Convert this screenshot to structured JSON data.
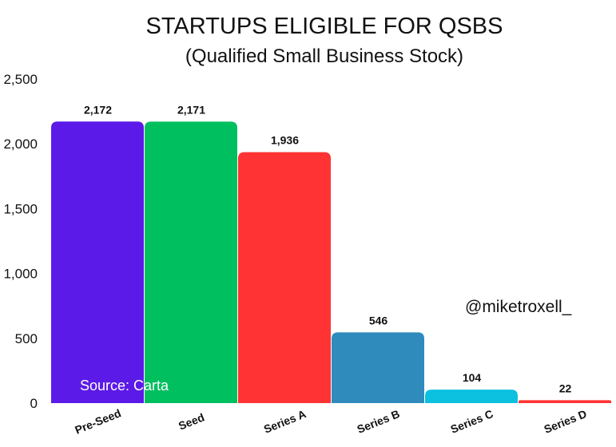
{
  "chart_data": {
    "type": "bar",
    "title": "STARTUPS ELIGIBLE FOR QSBS",
    "subtitle": "(Qualified Small Business Stock)",
    "categories": [
      "Pre-Seed",
      "Seed",
      "Series A",
      "Series B",
      "Series C",
      "Series D"
    ],
    "values": [
      2172,
      2171,
      1936,
      546,
      104,
      22
    ],
    "value_labels": [
      "2,172",
      "2,171",
      "1,936",
      "546",
      "104",
      "22"
    ],
    "colors": [
      "#5b1ae8",
      "#00bf5f",
      "#ff3333",
      "#2e8bbc",
      "#0cc0df",
      "#ff3333"
    ],
    "yticks": [
      0,
      500,
      1000,
      1500,
      2000,
      2500
    ],
    "ytick_labels": [
      "0",
      "500",
      "1,000",
      "1,500",
      "2,000",
      "2,500"
    ],
    "ylim": [
      0,
      2500
    ],
    "xlabel": "",
    "ylabel": "",
    "grid": false,
    "legend": "none",
    "annotations": {
      "source": "Source: Carta",
      "handle": "@miketroxell_"
    }
  }
}
